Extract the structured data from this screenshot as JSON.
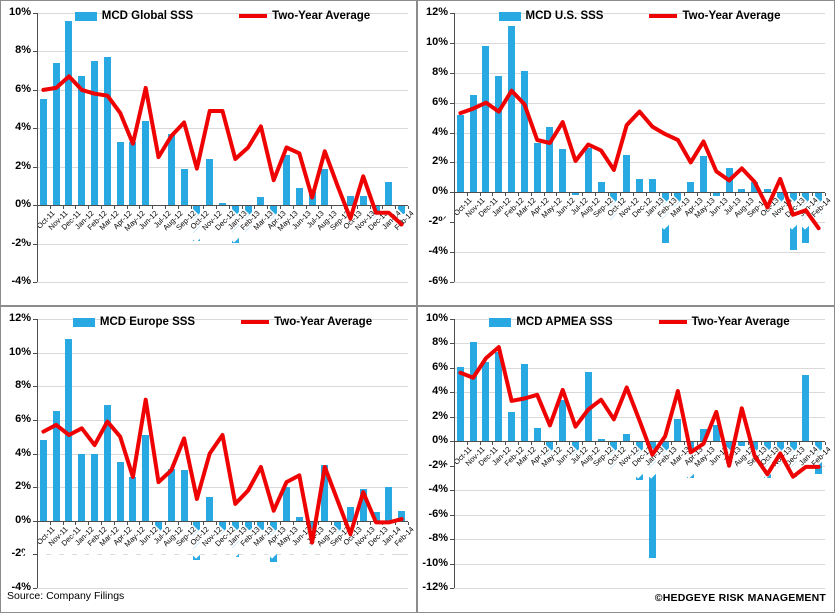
{
  "footer": {
    "source": "Source: Company Filings",
    "copyright": "©HEDGEYE RISK MANAGEMENT"
  },
  "colors": {
    "bar": "#29a9e1",
    "line": "#ee0202",
    "grid": "#d9d9d9",
    "axis": "#4d4d4d",
    "text": "#000000",
    "background": "#ffffff"
  },
  "chart_data": {
    "type": "bar+line panel grid (2x2)",
    "categories": [
      "Oct-11",
      "Nov-11",
      "Dec-11",
      "Jan-12",
      "Feb-12",
      "Mar-12",
      "Apr-12",
      "May-12",
      "Jun-12",
      "Jul-12",
      "Aug-12",
      "Sep-12",
      "Oct-12",
      "Nov-12",
      "Dec-12",
      "Jan-13",
      "Feb-13",
      "Mar-13",
      "Apr-13",
      "May-13",
      "Jun-13",
      "Jul-13",
      "Aug-13",
      "Sep-13",
      "Oct-13",
      "Nov-13",
      "Dec-13",
      "Jan-14",
      "Feb-14"
    ],
    "line_series_name": "Two-Year Average",
    "panels": [
      {
        "title": "MCD Global SSS",
        "legend": [
          "MCD Global SSS",
          "Two-Year Average"
        ],
        "ylim": [
          -4,
          10
        ],
        "ytick_labels": [
          "10%",
          "8%",
          "6%",
          "4%",
          "2%",
          "0%",
          "-2%",
          "-4%"
        ],
        "bars": [
          5.5,
          7.4,
          9.6,
          6.7,
          7.5,
          7.7,
          3.3,
          3.3,
          4.4,
          0.0,
          3.7,
          1.9,
          -1.8,
          2.4,
          0.1,
          -1.9,
          -1.5,
          0.4,
          -0.7,
          2.6,
          0.9,
          0.7,
          1.9,
          0.0,
          0.5,
          0.5,
          -0.8,
          1.2,
          -0.4
        ],
        "line": [
          6.0,
          6.1,
          6.7,
          6.0,
          5.8,
          5.7,
          4.8,
          3.2,
          6.1,
          2.5,
          3.6,
          4.3,
          1.9,
          4.9,
          4.9,
          2.4,
          3.0,
          4.1,
          1.3,
          3.0,
          2.7,
          0.4,
          2.8,
          1.0,
          -0.7,
          1.5,
          -0.4,
          -0.4,
          -1.0
        ]
      },
      {
        "title": "MCD U.S. SSS",
        "legend": [
          "MCD U.S. SSS",
          "Two-Year Average"
        ],
        "ylim": [
          -6,
          12
        ],
        "ytick_labels": [
          "12%",
          "10%",
          "8%",
          "6%",
          "4%",
          "2%",
          "0%",
          "-2%",
          "-4%",
          "-6%"
        ],
        "bars": [
          5.2,
          6.5,
          9.8,
          7.8,
          11.1,
          8.1,
          3.3,
          4.4,
          2.9,
          -0.1,
          3.0,
          0.7,
          -2.2,
          2.5,
          0.9,
          0.9,
          -3.3,
          -1.2,
          0.7,
          2.4,
          -0.2,
          1.6,
          0.2,
          0.7,
          0.2,
          -0.8,
          -3.8,
          -3.3,
          -1.4
        ],
        "line": [
          5.3,
          5.6,
          6.0,
          5.4,
          6.8,
          5.9,
          3.5,
          3.3,
          4.7,
          2.1,
          3.2,
          2.8,
          1.5,
          4.5,
          5.4,
          4.4,
          3.9,
          3.5,
          2.0,
          3.4,
          1.4,
          0.8,
          1.6,
          0.7,
          -1.0,
          0.9,
          -1.5,
          -1.2,
          -2.4
        ]
      },
      {
        "title": "MCD Europe SSS",
        "legend": [
          "MCD Europe SSS",
          "Two-Year Average"
        ],
        "ylim": [
          -4,
          12
        ],
        "ytick_labels": [
          "12%",
          "10%",
          "8%",
          "6%",
          "4%",
          "2%",
          "0%",
          "-2%",
          "-4%"
        ],
        "bars": [
          4.8,
          6.5,
          10.8,
          4.0,
          4.0,
          6.9,
          3.5,
          2.6,
          5.1,
          -0.6,
          3.1,
          3.0,
          -2.3,
          1.4,
          -0.7,
          -2.1,
          -0.5,
          -0.5,
          -2.4,
          2.0,
          0.2,
          -1.9,
          3.3,
          -0.7,
          0.8,
          1.9,
          0.5,
          2.0,
          0.6
        ],
        "line": [
          5.3,
          5.7,
          5.1,
          5.5,
          4.5,
          5.9,
          5.0,
          2.6,
          7.2,
          2.3,
          3.0,
          4.9,
          1.3,
          4.0,
          5.1,
          1.0,
          1.8,
          3.2,
          0.6,
          2.3,
          2.7,
          -1.3,
          3.2,
          1.2,
          -0.8,
          1.7,
          -0.1,
          -0.1,
          0.1
        ]
      },
      {
        "title": "MCD APMEA SSS",
        "legend": [
          "MCD APMEA SSS",
          "Two-Year Average"
        ],
        "ylim": [
          -12,
          10
        ],
        "ytick_labels": [
          "10%",
          "8%",
          "6%",
          "4%",
          "2%",
          "0%",
          "-2%",
          "-4%",
          "-6%",
          "-8%",
          "-10%",
          "-12%"
        ],
        "bars": [
          6.1,
          8.1,
          6.5,
          7.3,
          2.4,
          6.3,
          1.1,
          -1.3,
          3.4,
          -1.7,
          5.7,
          0.2,
          -2.5,
          0.6,
          -3.1,
          -9.5,
          -1.6,
          1.8,
          -2.9,
          1.0,
          1.3,
          -2.3,
          -0.3,
          -2.6,
          -2.9,
          -2.6,
          -2.8,
          5.4,
          -2.6
        ],
        "line": [
          5.6,
          5.2,
          6.8,
          7.7,
          3.3,
          3.5,
          3.8,
          1.3,
          4.2,
          1.2,
          2.6,
          3.4,
          1.8,
          4.4,
          1.7,
          -1.1,
          0.4,
          4.1,
          -0.9,
          -0.2,
          2.4,
          -2.0,
          2.7,
          -1.2,
          -2.7,
          -1.0,
          -2.9,
          -2.1,
          -2.1
        ]
      }
    ]
  }
}
